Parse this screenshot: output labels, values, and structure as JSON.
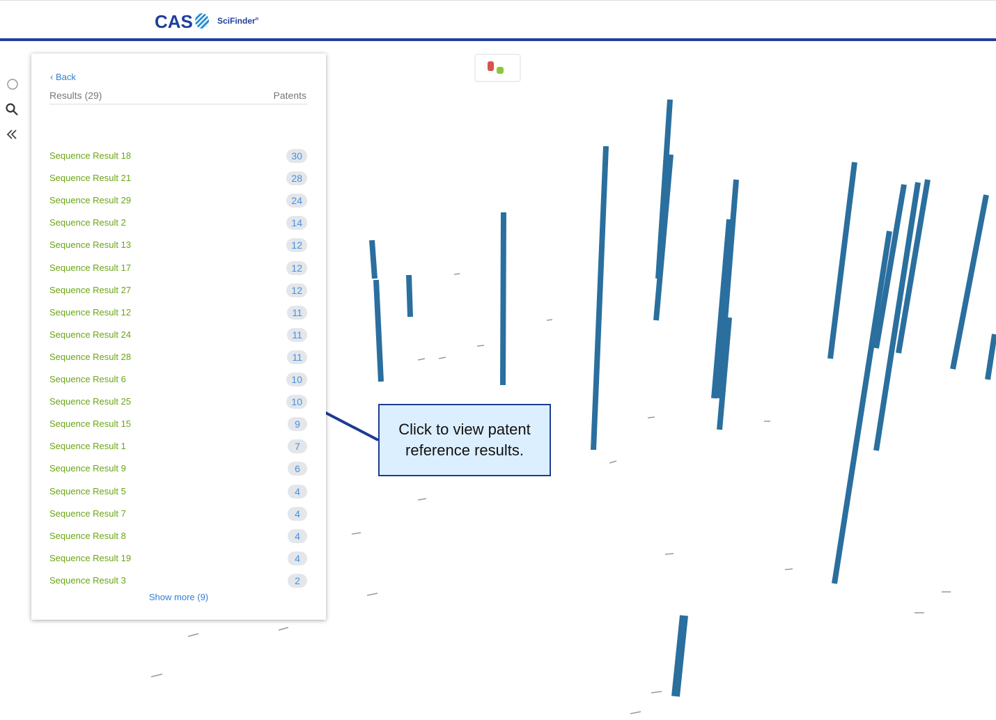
{
  "header": {
    "brand": "CAS",
    "product": "SciFinder",
    "product_sup": "n"
  },
  "panel": {
    "back": "Back",
    "results_label": "Results (29)",
    "column_label": "Patents",
    "rows": [
      {
        "name": "Sequence Result 18",
        "count": 30
      },
      {
        "name": "Sequence Result 21",
        "count": 28
      },
      {
        "name": "Sequence Result 29",
        "count": 24
      },
      {
        "name": "Sequence Result 2",
        "count": 14
      },
      {
        "name": "Sequence Result 13",
        "count": 12
      },
      {
        "name": "Sequence Result 17",
        "count": 12
      },
      {
        "name": "Sequence Result 27",
        "count": 12
      },
      {
        "name": "Sequence Result 12",
        "count": 11
      },
      {
        "name": "Sequence Result 24",
        "count": 11
      },
      {
        "name": "Sequence Result 28",
        "count": 11
      },
      {
        "name": "Sequence Result 6",
        "count": 10
      },
      {
        "name": "Sequence Result 25",
        "count": 10
      },
      {
        "name": "Sequence Result 15",
        "count": 9
      },
      {
        "name": "Sequence Result 1",
        "count": 7
      },
      {
        "name": "Sequence Result 9",
        "count": 6
      },
      {
        "name": "Sequence Result 5",
        "count": 4
      },
      {
        "name": "Sequence Result 7",
        "count": 4
      },
      {
        "name": "Sequence Result 8",
        "count": 4
      },
      {
        "name": "Sequence Result 19",
        "count": 4
      },
      {
        "name": "Sequence Result 3",
        "count": 2
      }
    ],
    "show_more": "Show more (9)"
  },
  "callout": {
    "text": "Click to view patent reference results."
  }
}
